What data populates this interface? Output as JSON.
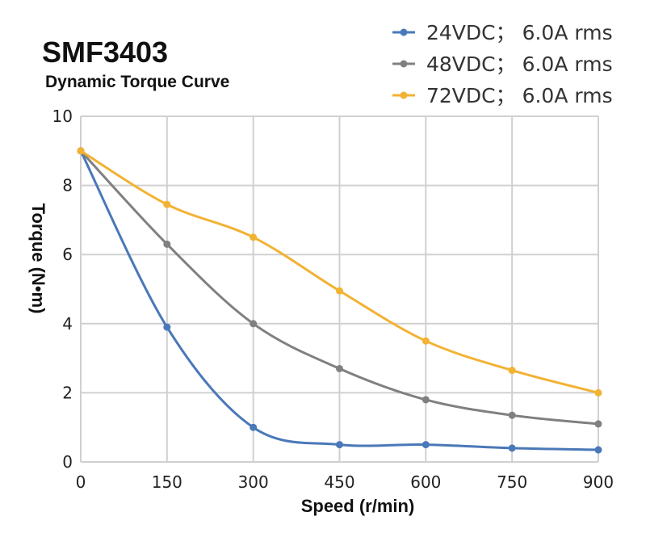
{
  "chart_data": {
    "type": "line",
    "title": "SMF3403",
    "subtitle": "Dynamic Torque Curve",
    "xlabel": "Speed (r/min)",
    "ylabel": "Torque (N•m)",
    "x": [
      0,
      150,
      300,
      450,
      600,
      750,
      900
    ],
    "xlim": [
      0,
      900
    ],
    "ylim": [
      0,
      10
    ],
    "xticks": [
      "0",
      "150",
      "300",
      "450",
      "600",
      "750",
      "900"
    ],
    "yticks": [
      "0",
      "2",
      "4",
      "6",
      "8",
      "10"
    ],
    "grid": true,
    "smooth": true,
    "legend_position": "top-right",
    "series": [
      {
        "name": "24VDC；  6.0A rms",
        "color": "#4a78b8",
        "values": [
          9.0,
          3.9,
          1.0,
          0.5,
          0.5,
          0.4,
          0.35
        ]
      },
      {
        "name": "48VDC；  6.0A rms",
        "color": "#808080",
        "values": [
          9.0,
          6.3,
          4.0,
          2.7,
          1.8,
          1.35,
          1.1
        ]
      },
      {
        "name": "72VDC；  6.0A rms",
        "color": "#f2b233",
        "values": [
          9.0,
          7.45,
          6.5,
          4.95,
          3.5,
          2.65,
          2.0
        ]
      }
    ]
  }
}
